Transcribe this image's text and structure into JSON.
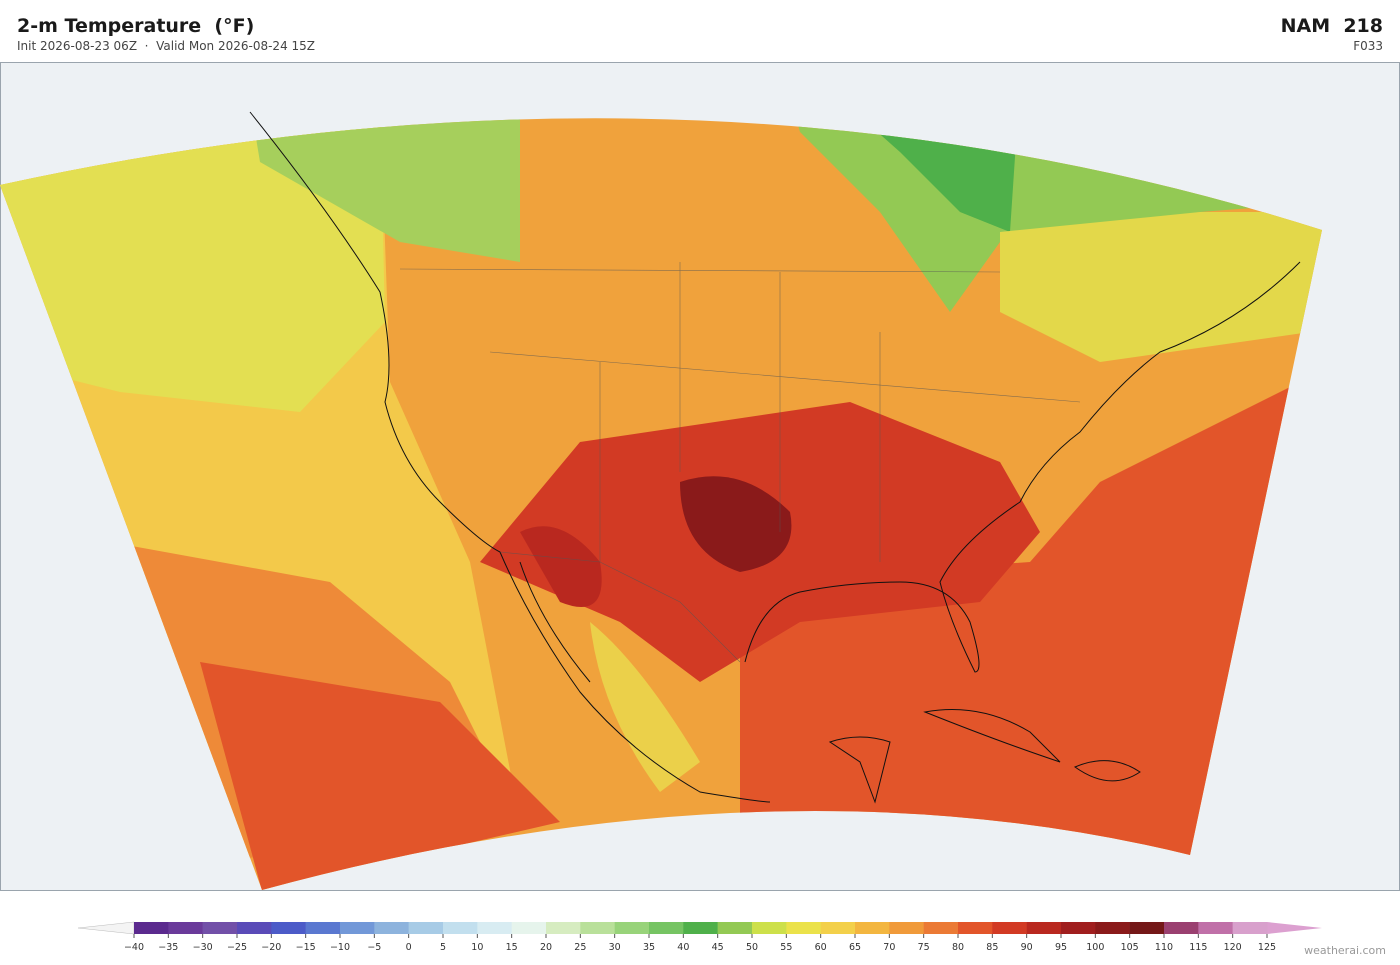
{
  "header": {
    "title": "2-m Temperature  (°F)",
    "subtitle": "Init 2026-08-23 06Z  ·  Valid Mon 2026-08-24 15Z",
    "model": "NAM  218",
    "forecast_hour": "F033"
  },
  "colorbar": {
    "ticks": [
      {
        "value": -40,
        "label": "−40"
      },
      {
        "value": -35,
        "label": "−35"
      },
      {
        "value": -30,
        "label": "−30"
      },
      {
        "value": -25,
        "label": "−25"
      },
      {
        "value": -20,
        "label": "−20"
      },
      {
        "value": -15,
        "label": "−15"
      },
      {
        "value": -10,
        "label": "−10"
      },
      {
        "value": -5,
        "label": "−5"
      },
      0,
      5,
      10,
      15,
      20,
      25,
      30,
      35,
      40,
      45,
      50,
      55,
      60,
      65,
      70,
      75,
      80,
      85,
      90,
      95,
      100,
      105,
      110,
      115,
      120,
      125
    ],
    "colors": [
      "#5b2a8e",
      "#6a3a9a",
      "#7250a8",
      "#5a4bb8",
      "#4c5bc8",
      "#5a78d0",
      "#7298d8",
      "#8db3dd",
      "#a7cbe6",
      "#c2dfee",
      "#d8ecf2",
      "#e6f4ec",
      "#d6ecc0",
      "#b9e09a",
      "#98d37a",
      "#76c463",
      "#4fb04a",
      "#93c954",
      "#cde04a",
      "#ebe24a",
      "#f3d04a",
      "#f3b640",
      "#f09a3a",
      "#eb7a35",
      "#e2552a",
      "#d23a24",
      "#b9281f",
      "#a01e1e",
      "#8a1a1a",
      "#741818",
      "#9a4070",
      "#c070a8",
      "#d8a0cc"
    ],
    "under_color": "#f4f4f4",
    "over_color": "#dca0d0"
  },
  "credit": "weatherai.com"
}
